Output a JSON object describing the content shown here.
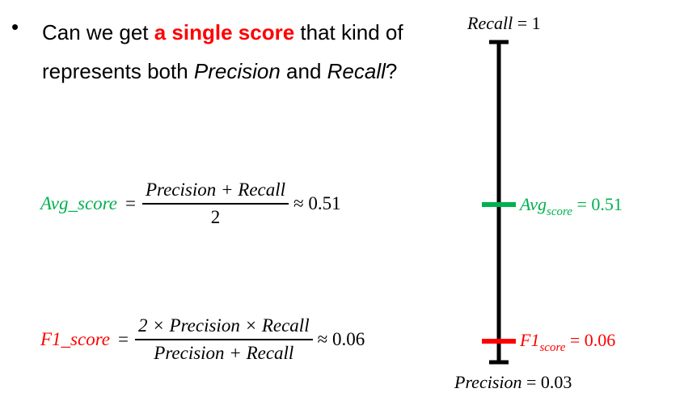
{
  "bullet": {
    "text_before": "Can we get ",
    "highlight": "a single score",
    "text_mid": " that kind of represents both ",
    "precision_word": "Precision",
    "and_word": " and ",
    "recall_word": "Recall",
    "text_end": "?"
  },
  "avg_formula": {
    "lhs": "Avg_score",
    "eq": "=",
    "numerator": "Precision + Recall",
    "denominator": "2",
    "approx": "≈ 0.51"
  },
  "f1_formula": {
    "lhs": "F1_score",
    "eq": "=",
    "numerator": "2 × Precision × Recall",
    "denominator": "Precision + Recall",
    "approx": "≈ 0.06"
  },
  "scale": {
    "top_name": "Recall",
    "top_value": " = 1",
    "bottom_name": "Precision",
    "bottom_value": " = 0.03",
    "avg_base": "Avg",
    "avg_sub": "score",
    "avg_value": " = 0.51",
    "f1_base": "F1",
    "f1_sub": "score",
    "f1_value": " = 0.06"
  },
  "colors": {
    "avg": "#00b050",
    "f1": "#ff0000",
    "axis": "#000000"
  }
}
